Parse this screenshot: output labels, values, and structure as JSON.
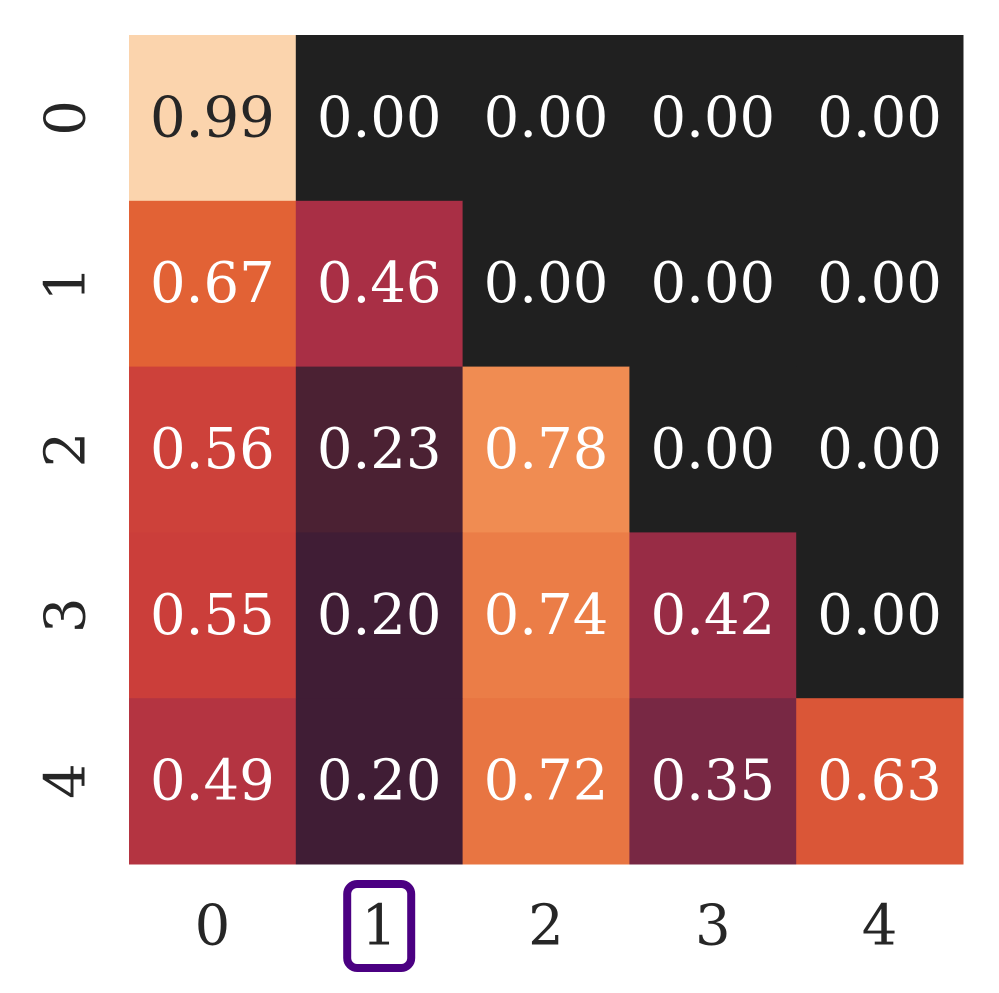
{
  "chart_data": {
    "type": "heatmap",
    "title": "",
    "xlabel": "",
    "ylabel": "",
    "x_tick_labels": [
      "0",
      "1",
      "2",
      "3",
      "4"
    ],
    "y_tick_labels": [
      "0",
      "1",
      "2",
      "3",
      "4"
    ],
    "values": [
      [
        0.99,
        0.0,
        0.0,
        0.0,
        0.0
      ],
      [
        0.67,
        0.46,
        0.0,
        0.0,
        0.0
      ],
      [
        0.56,
        0.23,
        0.78,
        0.0,
        0.0
      ],
      [
        0.55,
        0.2,
        0.74,
        0.42,
        0.0
      ],
      [
        0.49,
        0.2,
        0.72,
        0.35,
        0.63
      ]
    ],
    "value_format": "0.00",
    "colormap": "rocket",
    "colorbar": false,
    "highlighted_x_tick": "1",
    "highlight_color": "#4b0082"
  }
}
